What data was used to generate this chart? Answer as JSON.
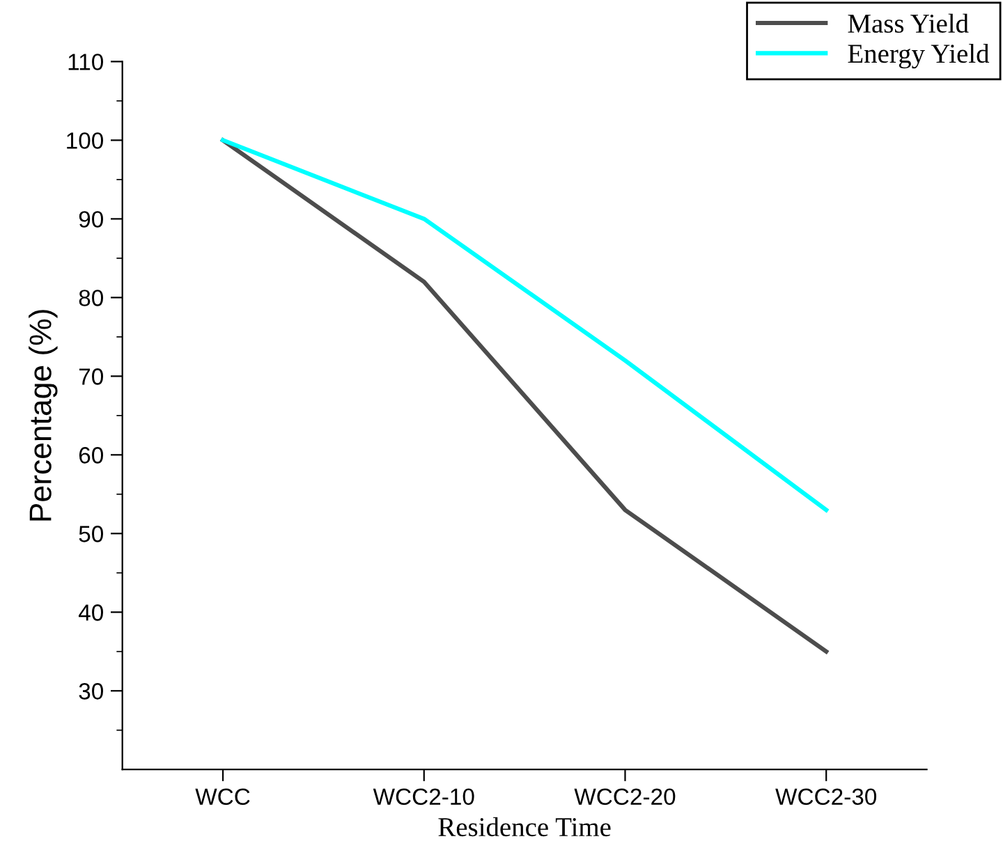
{
  "chart_data": {
    "type": "line",
    "xlabel": "Residence Time",
    "ylabel": "Percentage (%)",
    "categories": [
      "WCC",
      "WCC2-10",
      "WCC2-20",
      "WCC2-30"
    ],
    "series": [
      {
        "name": "Mass Yield",
        "color": "#4d4d4d",
        "values": [
          100,
          82,
          53,
          35
        ]
      },
      {
        "name": "Energy Yield",
        "color": "#00ffff",
        "values": [
          100,
          90,
          72,
          53
        ]
      }
    ],
    "ylim": [
      20,
      110
    ],
    "yticks": [
      30,
      40,
      50,
      60,
      70,
      80,
      90,
      100,
      110
    ],
    "grid": false,
    "legend": "top right",
    "marker": "none",
    "line_style": "solid"
  }
}
